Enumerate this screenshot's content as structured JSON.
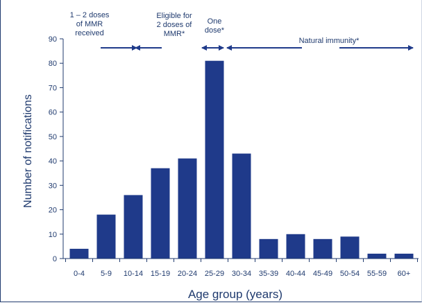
{
  "chart_data": {
    "type": "bar",
    "title": "",
    "xlabel": "Age group (years)",
    "ylabel": "Number of notifications",
    "ylim": [
      0,
      90
    ],
    "yticks": [
      0,
      10,
      20,
      30,
      40,
      50,
      60,
      70,
      80,
      90
    ],
    "grid": false,
    "legend": "none",
    "bar_color": "#1f3a8a",
    "categories": [
      "0-4",
      "5-9",
      "10-14",
      "15-19",
      "20-24",
      "25-29",
      "30-34",
      "35-39",
      "40-44",
      "45-49",
      "50-54",
      "55-59",
      "60+"
    ],
    "values": [
      4,
      18,
      26,
      37,
      41,
      81,
      43,
      8,
      10,
      8,
      9,
      2,
      2
    ],
    "annotations": [
      {
        "lines": [
          "1 – 2 doses",
          "of MMR",
          "received"
        ]
      },
      {
        "lines": [
          "Eligible for",
          "2 doses of",
          "MMR*"
        ]
      },
      {
        "lines": [
          "One",
          "dose*"
        ]
      },
      {
        "lines": [
          "Natural immunity*"
        ]
      }
    ]
  },
  "colors": {
    "text": "#1f3a6e",
    "axis": "#1f3a6e",
    "arrow": "#1f3a8a"
  }
}
